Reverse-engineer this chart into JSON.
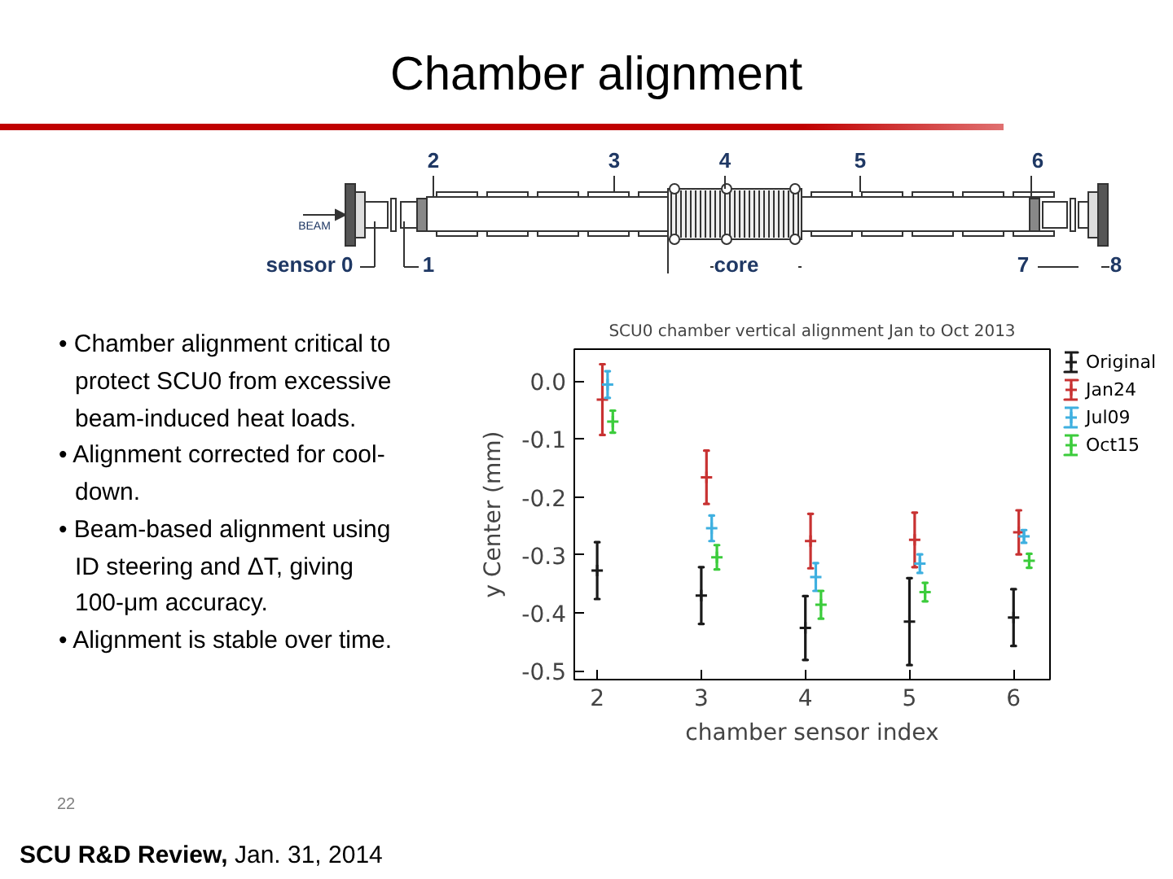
{
  "chart_data": {
    "type": "scatter",
    "title": "Chamber alignment",
    "subtitle": "SCU0 chamber vertical alignment Jan to Oct 2013",
    "xlabel": "chamber sensor index",
    "ylabel": "y Center (mm)",
    "xlim": [
      1.78,
      6.35
    ],
    "xticks": [
      2,
      3,
      4,
      5,
      6
    ],
    "ylim": [
      -0.515,
      0.055
    ],
    "yticks": [
      {
        "value": 0,
        "label": "0.0"
      },
      -0.1,
      -0.2,
      -0.3,
      -0.4,
      -0.5
    ],
    "legend": "top right",
    "marker": "cross",
    "series": [
      {
        "name": "Original",
        "color": "#1a1a1a",
        "x": [
          2,
          3,
          4,
          5,
          6
        ],
        "values": [
          -0.327,
          -0.37,
          -0.426,
          -0.415,
          -0.408
        ],
        "errors": [
          0.049,
          0.049,
          0.055,
          0.075,
          0.049
        ]
      },
      {
        "name": "Jan24",
        "color": "#c83232",
        "x": [
          2.05,
          3.05,
          4.05,
          5.05,
          6.05
        ],
        "values": [
          -0.032,
          -0.166,
          -0.276,
          -0.274,
          -0.261
        ],
        "errors": [
          0.061,
          0.046,
          0.047,
          0.047,
          0.038
        ]
      },
      {
        "name": "Jul09",
        "color": "#3fb0e0",
        "x": [
          2.1,
          3.1,
          4.1,
          5.1,
          6.1
        ],
        "values": [
          -0.006,
          -0.254,
          -0.338,
          -0.315,
          -0.268
        ],
        "errors": [
          0.023,
          0.022,
          0.024,
          0.016,
          0.011
        ]
      },
      {
        "name": "Oct15",
        "color": "#3ccc3c",
        "x": [
          2.15,
          3.15,
          4.15,
          5.15,
          6.15
        ],
        "values": [
          -0.07,
          -0.304,
          -0.386,
          -0.364,
          -0.31
        ],
        "errors": [
          0.019,
          0.021,
          0.024,
          0.016,
          0.012
        ]
      }
    ],
    "annotations": [
      "• Chamber alignment critical to protect SCU0 from excessive beam-induced heat loads.",
      "• Alignment corrected for cool-down.",
      "• Beam-based alignment using ID steering and ΔT, giving 100-μm accuracy.",
      "• Alignment is stable over time.",
      "2",
      "3",
      "4",
      "5",
      "6",
      "sensor 0",
      "1",
      "core",
      "7",
      "8",
      "BEAM",
      "22",
      "SCU R&D Review,",
      "Jan. 31, 2014"
    ]
  }
}
